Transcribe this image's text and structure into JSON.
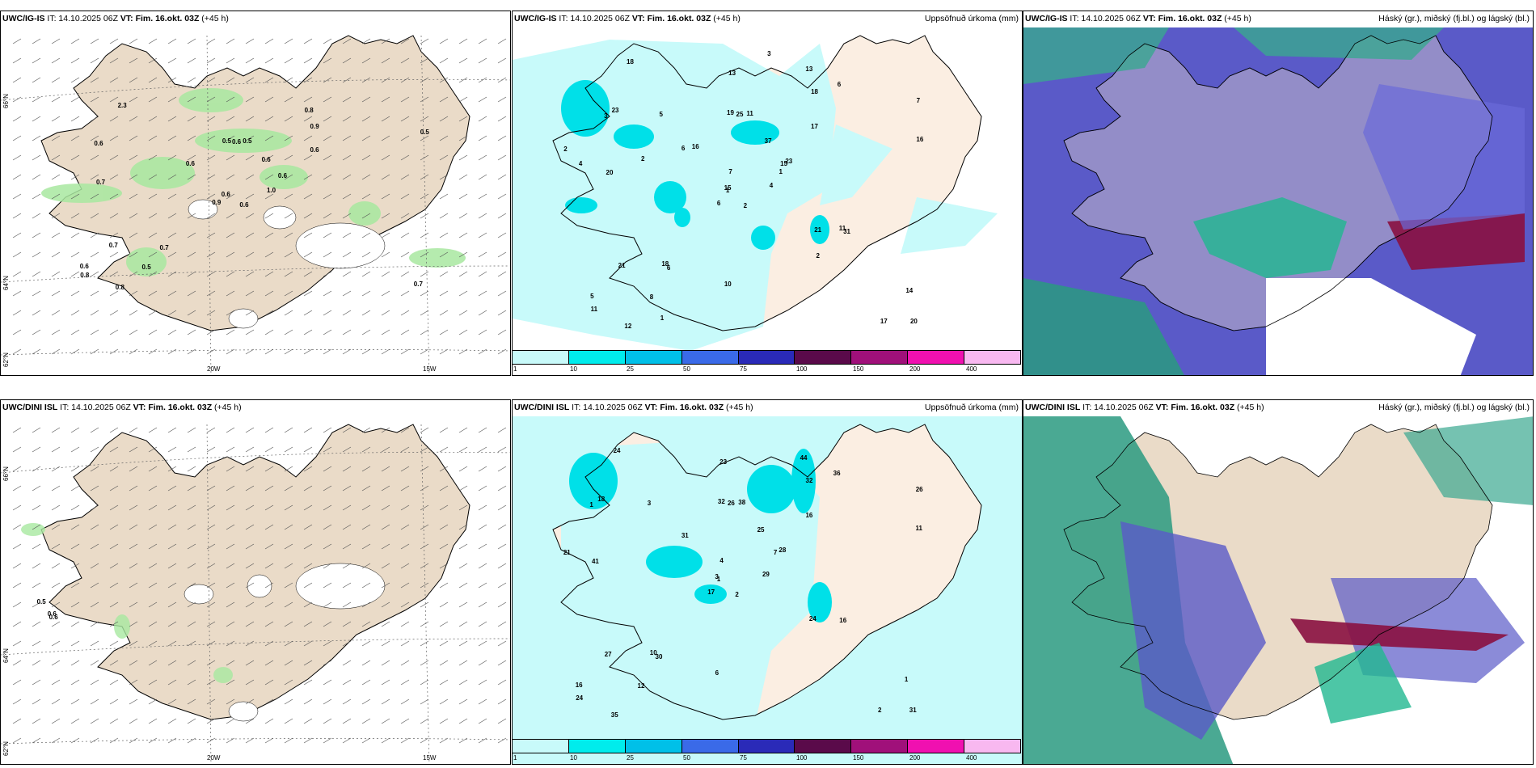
{
  "panels": [
    {
      "id": "p1",
      "model": "UWC/IG-IS",
      "it": "IT: 14.10.2025 06Z",
      "vt": "VT: Fim. 16.okt. 03Z",
      "lead": "(+45 h)",
      "right": ""
    },
    {
      "id": "p2",
      "model": "UWC/IG-IS",
      "it": "IT: 14.10.2025 06Z",
      "vt": "VT: Fim. 16.okt. 03Z",
      "lead": "(+45 h)",
      "right": "Uppsöfnuð úrkoma (mm)"
    },
    {
      "id": "p3",
      "model": "UWC/IG-IS",
      "it": "IT: 14.10.2025 06Z",
      "vt": "VT: Fim. 16.okt. 03Z",
      "lead": "(+45 h)",
      "right": "Háský (gr.), miðský (fj.bl.) og lágský (bl.)"
    },
    {
      "id": "p4",
      "model": "UWC/DINI ISL",
      "it": "IT: 14.10.2025 06Z",
      "vt": "VT: Fim. 16.okt. 03Z",
      "lead": "(+45 h)",
      "right": ""
    },
    {
      "id": "p5",
      "model": "UWC/DINI ISL",
      "it": "IT: 14.10.2025 06Z",
      "vt": "VT: Fim. 16.okt. 03Z",
      "lead": "(+45 h)",
      "right": "Uppsöfnuð úrkoma (mm)"
    },
    {
      "id": "p6",
      "model": "UWC/DINI ISL",
      "it": "IT: 14.10.2025 06Z",
      "vt": "VT: Fim. 16.okt. 03Z",
      "lead": "(+45 h)",
      "right": "Háský (gr.), miðský (fj.bl.) og lágský (bl.)"
    }
  ],
  "axes": {
    "lat66": "66°N",
    "lat64": "64°N",
    "lat62": "62°N",
    "lon20": "20W",
    "lon15": "15W"
  },
  "colorbar": {
    "labels": [
      "1",
      "10",
      "25",
      "50",
      "75",
      "100",
      "150",
      "200",
      "400"
    ],
    "colors": [
      "#c8fafa",
      "#00ecec",
      "#00c0e8",
      "#3a6ae8",
      "#2a2ab8",
      "#5a0a4a",
      "#a0107a",
      "#f010b0",
      "#f8b8f0"
    ]
  },
  "panel1_values": [
    "0.6",
    "0.6",
    "0.6",
    "0.6",
    "0.6",
    "0.7",
    "0.8",
    "0.5",
    "0.9",
    "1.0",
    "2.3",
    "0.7",
    "0.7",
    "0.5",
    "0.9",
    "0.6",
    "0.8",
    "0.5",
    "0.6",
    "0.7",
    "0.6",
    "0.8",
    "0.5",
    "0.6"
  ],
  "panel2_values": [
    "2",
    "3",
    "1",
    "5",
    "15",
    "6",
    "13",
    "11",
    "18",
    "4",
    "18",
    "20",
    "20",
    "7",
    "6",
    "17",
    "12",
    "19",
    "37",
    "21",
    "16",
    "11",
    "8",
    "25",
    "23",
    "31",
    "23",
    "13",
    "4",
    "21",
    "16",
    "15",
    "10",
    "7",
    "5",
    "6",
    "18",
    "17",
    "14",
    "11",
    "3",
    "6",
    "2",
    "2",
    "1",
    "2",
    "1"
  ],
  "panel4_values": [
    "0.6",
    "0.5",
    "0.6"
  ],
  "panel5_values": [
    "2",
    "1",
    "1",
    "16",
    "7",
    "30",
    "44",
    "38",
    "32",
    "29",
    "24",
    "31",
    "41",
    "26",
    "17",
    "16",
    "35",
    "32",
    "25",
    "27",
    "31",
    "24",
    "12",
    "26",
    "28",
    "16",
    "18",
    "23",
    "21",
    "24",
    "11",
    "3",
    "6",
    "4",
    "3",
    "36",
    "10",
    "2",
    "1"
  ],
  "colors": {
    "land": "#eadbc8",
    "ocean": "#ffffff",
    "precip_light": "#c8fafa",
    "precip_med": "#00e0e8",
    "cloud_high": "#5050c0",
    "cloud_mid": "#20c090",
    "cloud_low": "#8a1040"
  }
}
